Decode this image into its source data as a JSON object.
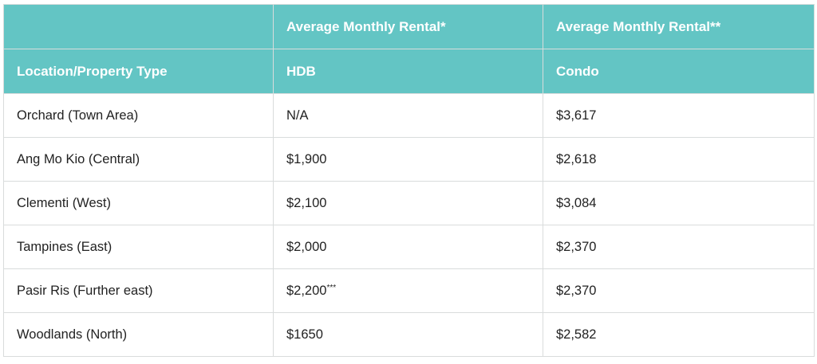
{
  "table": {
    "header_row_1": [
      "",
      "Average Monthly Rental*",
      "Average Monthly Rental**"
    ],
    "header_row_2": [
      "Location/Property Type",
      "HDB",
      "Condo"
    ],
    "rows": [
      {
        "location": "Orchard (Town Area)",
        "hdb": "N/A",
        "hdb_note": "",
        "condo": "$3,617"
      },
      {
        "location": "Ang Mo Kio (Central)",
        "hdb": "$1,900",
        "hdb_note": "",
        "condo": "$2,618"
      },
      {
        "location": "Clementi (West)",
        "hdb": "$2,100",
        "hdb_note": "",
        "condo": "$3,084"
      },
      {
        "location": "Tampines (East)",
        "hdb": "$2,000",
        "hdb_note": "",
        "condo": "$2,370"
      },
      {
        "location": "Pasir Ris (Further east)",
        "hdb": "$2,200",
        "hdb_note": "***",
        "condo": "$2,370"
      },
      {
        "location": "Woodlands (North)",
        "hdb": "$1650",
        "hdb_note": "",
        "condo": "$2,582"
      }
    ]
  },
  "colors": {
    "header_bg": "#63c5c4",
    "header_text": "#ffffff",
    "border": "#d9dcdc",
    "body_text": "#222222"
  }
}
